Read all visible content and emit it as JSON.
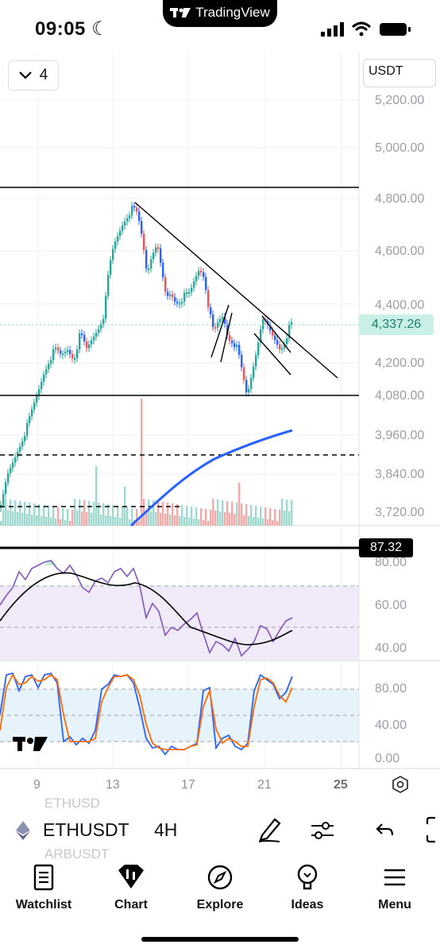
{
  "status": {
    "time": "09:05",
    "app_banner": "TradingView"
  },
  "toolbar": {
    "interval_count": "4",
    "currency": "USDT"
  },
  "price_axis": [
    "5,200.00",
    "5,000.00",
    "4,800.00",
    "4,600.00",
    "4,400.00",
    "4,200.00",
    "4,080.00",
    "3,960.00",
    "3,840.00",
    "3,720.00"
  ],
  "last_price": "4,337.26",
  "indicator_badge": "87.32",
  "rsi_axis": [
    "80.00",
    "60.00",
    "40.00"
  ],
  "stoch_axis": [
    "80.00",
    "40.00",
    "0.00"
  ],
  "date_axis": [
    "9",
    "13",
    "17",
    "21",
    "25"
  ],
  "symbol": {
    "name": "ETHUSDT",
    "timeframe": "4H",
    "ghost_above": "ETHUSD",
    "ghost_below": "ARBUSDT"
  },
  "nav": [
    {
      "label": "Watchlist",
      "icon": "watchlist-icon"
    },
    {
      "label": "Chart",
      "icon": "chart-icon"
    },
    {
      "label": "Explore",
      "icon": "compass-icon"
    },
    {
      "label": "Ideas",
      "icon": "lightbulb-icon"
    },
    {
      "label": "Menu",
      "icon": "menu-icon"
    }
  ],
  "colors": {
    "up": "#26a69a",
    "down": "#ef5350",
    "ma": "#2962ff",
    "rsi": "#7e57c2",
    "stoch_k": "#2962ff",
    "stoch_d": "#ff6d00"
  }
}
